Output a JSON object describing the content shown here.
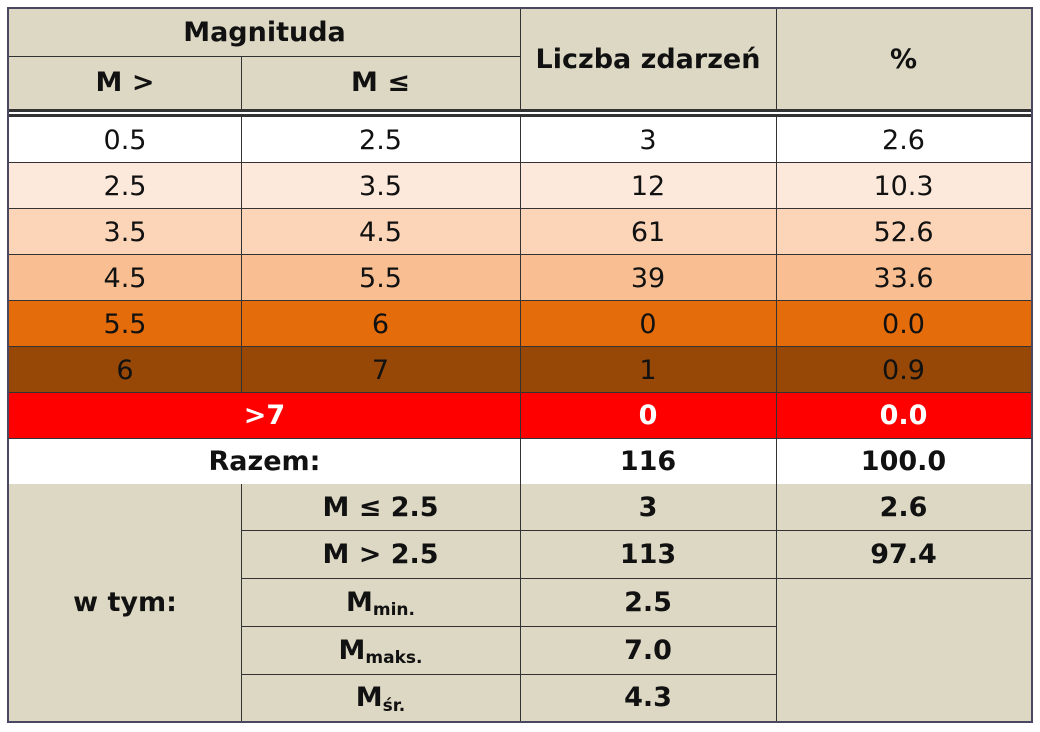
{
  "header": {
    "magnitude_group": "Magnituda",
    "col_m_gt": "M >",
    "col_m_le": "M ≤",
    "col_count": "Liczba zdarzeń",
    "col_percent": "%"
  },
  "rows": [
    {
      "m_gt": "0.5",
      "m_le": "2.5",
      "count": "3",
      "percent": "2.6",
      "color": "#ffffff"
    },
    {
      "m_gt": "2.5",
      "m_le": "3.5",
      "count": "12",
      "percent": "10.3",
      "color": "#fde9dc"
    },
    {
      "m_gt": "3.5",
      "m_le": "4.5",
      "count": "61",
      "percent": "52.6",
      "color": "#fcd5b8"
    },
    {
      "m_gt": "4.5",
      "m_le": "5.5",
      "count": "39",
      "percent": "33.6",
      "color": "#f9bf93"
    },
    {
      "m_gt": "5.5",
      "m_le": "6",
      "count": "0",
      "percent": "0.0",
      "color": "#e46c0a"
    },
    {
      "m_gt": "6",
      "m_le": "7",
      "count": "1",
      "percent": "0.9",
      "color": "#974806"
    }
  ],
  "over7": {
    "label": ">7",
    "count": "0",
    "percent": "0.0",
    "color": "#ff0000"
  },
  "total": {
    "label": "Razem:",
    "count": "116",
    "percent": "100.0"
  },
  "subset": {
    "label": "w tym:",
    "le25": {
      "label": "M ≤ 2.5",
      "count": "3",
      "percent": "2.6"
    },
    "gt25": {
      "label": "M > 2.5",
      "count": "113",
      "percent": "97.4"
    },
    "mmin": {
      "base": "M",
      "sub": "min.",
      "value": "2.5"
    },
    "mmax": {
      "base": "M",
      "sub": "maks.",
      "value": "7.0"
    },
    "mavg": {
      "base": "M",
      "sub": "śr.",
      "value": "4.3"
    }
  },
  "colors": {
    "header_bg": "#ddd8c4",
    "border": "#4a4860"
  }
}
